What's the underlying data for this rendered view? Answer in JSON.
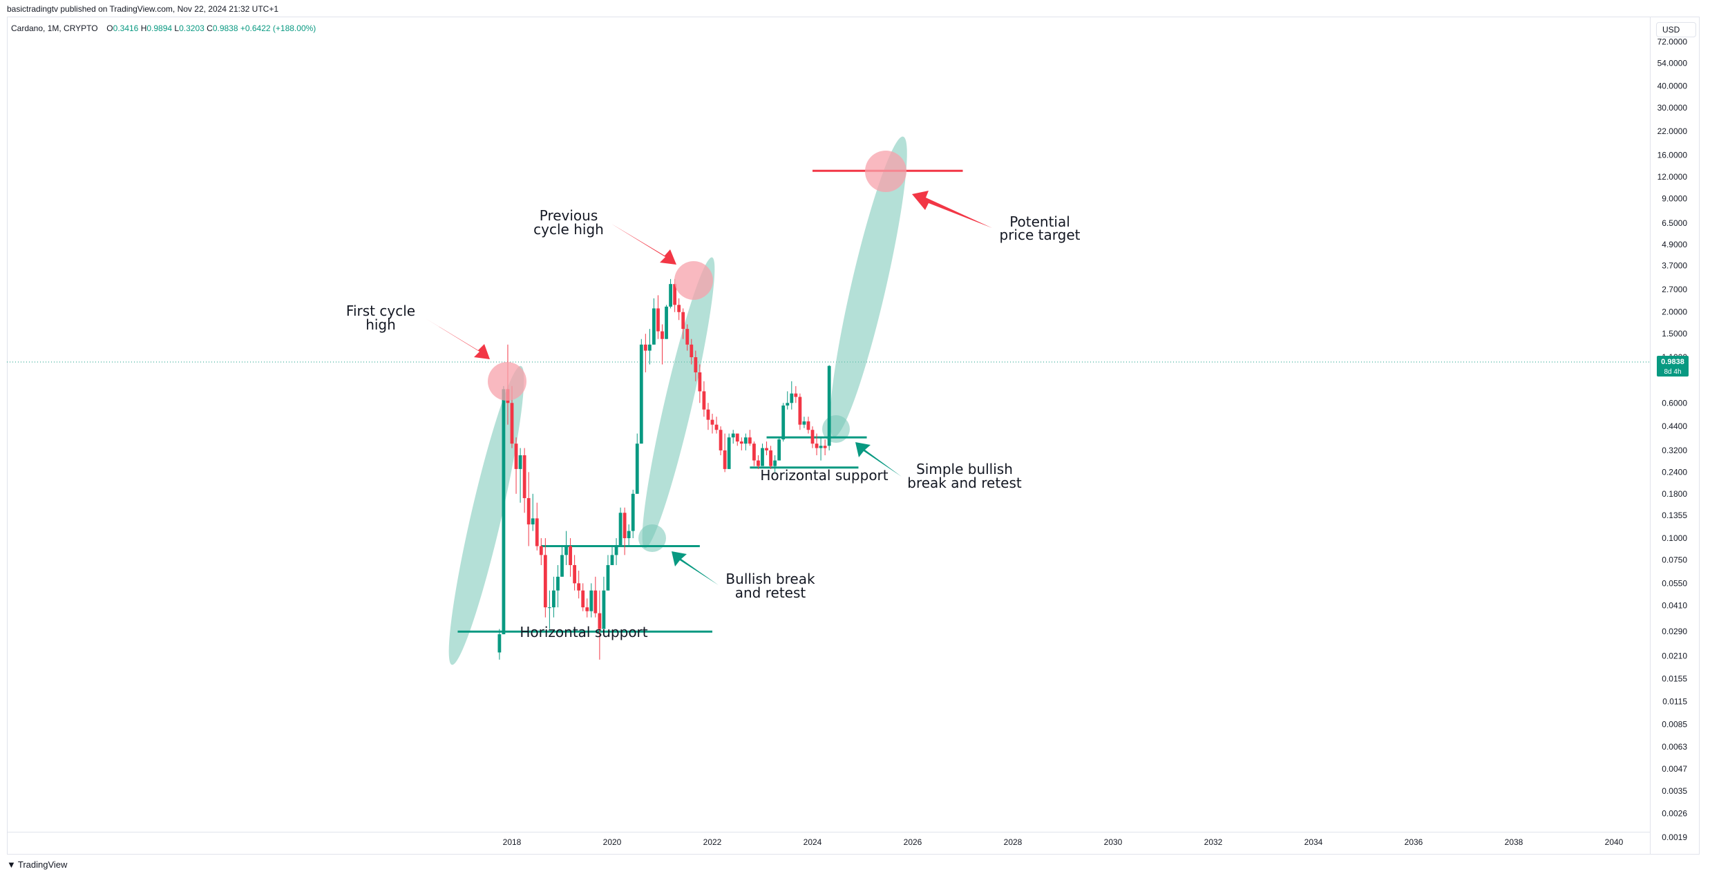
{
  "header": {
    "published": "basictradingtv published on TradingView.com, Nov 22, 2024 21:32 UTC+1",
    "symbol": "Cardano, 1M, CRYPTO",
    "ohlc": [
      {
        "label": "O",
        "value": "0.3416"
      },
      {
        "label": "H",
        "value": "0.9894"
      },
      {
        "label": "L",
        "value": "0.3203"
      },
      {
        "label": "C",
        "value": "0.9838"
      }
    ],
    "change": "+0.6422 (+188.00%)"
  },
  "price_axis": {
    "currency": "USD",
    "ticks": [
      "72.0000",
      "54.0000",
      "40.0000",
      "30.0000",
      "22.0000",
      "16.0000",
      "12.0000",
      "9.0000",
      "6.5000",
      "4.9000",
      "3.7000",
      "2.7000",
      "2.0000",
      "1.5000",
      "1.1000",
      "0.6000",
      "0.4400",
      "0.3200",
      "0.2400",
      "0.1800",
      "0.1355",
      "0.1000",
      "0.0750",
      "0.0550",
      "0.0410",
      "0.0290",
      "0.0210",
      "0.0155",
      "0.0115",
      "0.0085",
      "0.0063",
      "0.0047",
      "0.0035",
      "0.0026",
      "0.0019"
    ],
    "last_price": "0.9838",
    "countdown": "8d 4h"
  },
  "time_axis": {
    "ticks": [
      "2018",
      "2020",
      "2022",
      "2024",
      "2026",
      "2028",
      "2030",
      "2032",
      "2034",
      "2036",
      "2038",
      "2040"
    ]
  },
  "colors": {
    "up": "#089981",
    "down": "#f23645",
    "highlight_circle": "#f7a1ab",
    "channel": "#76c7b7",
    "target_line": "#f23645"
  },
  "annotations": {
    "first_cycle_high": [
      "First cycle",
      "high"
    ],
    "previous_cycle_high": [
      "Previous",
      "cycle high"
    ],
    "potential_price_target": [
      "Potential",
      "price target"
    ],
    "simple_bullish_break": [
      "Simple bullish",
      "break and retest"
    ],
    "bullish_break": [
      "Bullish break",
      "and retest"
    ],
    "horizontal_support_1": "Horizontal support",
    "horizontal_support_2": "Horizontal support"
  },
  "chart_data": {
    "type": "candlestick",
    "scale": "log",
    "candles_high_low_open_close": [
      [
        0.03,
        0.02,
        0.022,
        0.028
      ],
      [
        0.75,
        0.028,
        0.028,
        0.72
      ],
      [
        1.3,
        0.45,
        0.72,
        0.6
      ],
      [
        0.75,
        0.33,
        0.6,
        0.35
      ],
      [
        0.38,
        0.18,
        0.35,
        0.25
      ],
      [
        0.33,
        0.16,
        0.25,
        0.3
      ],
      [
        0.33,
        0.14,
        0.3,
        0.17
      ],
      [
        0.24,
        0.09,
        0.17,
        0.12
      ],
      [
        0.18,
        0.11,
        0.12,
        0.13
      ],
      [
        0.16,
        0.085,
        0.13,
        0.09
      ],
      [
        0.1,
        0.07,
        0.09,
        0.08
      ],
      [
        0.1,
        0.035,
        0.08,
        0.04
      ],
      [
        0.05,
        0.03,
        0.04,
        0.04
      ],
      [
        0.06,
        0.035,
        0.04,
        0.05
      ],
      [
        0.07,
        0.04,
        0.05,
        0.06
      ],
      [
        0.09,
        0.06,
        0.06,
        0.08
      ],
      [
        0.11,
        0.07,
        0.08,
        0.09
      ],
      [
        0.1,
        0.06,
        0.09,
        0.07
      ],
      [
        0.08,
        0.05,
        0.07,
        0.055
      ],
      [
        0.065,
        0.045,
        0.055,
        0.05
      ],
      [
        0.055,
        0.038,
        0.05,
        0.04
      ],
      [
        0.045,
        0.035,
        0.04,
        0.038
      ],
      [
        0.055,
        0.035,
        0.038,
        0.05
      ],
      [
        0.06,
        0.035,
        0.05,
        0.037
      ],
      [
        0.05,
        0.02,
        0.037,
        0.03
      ],
      [
        0.06,
        0.03,
        0.03,
        0.05
      ],
      [
        0.08,
        0.05,
        0.05,
        0.07
      ],
      [
        0.09,
        0.07,
        0.07,
        0.08
      ],
      [
        0.1,
        0.07,
        0.08,
        0.09
      ],
      [
        0.15,
        0.09,
        0.09,
        0.14
      ],
      [
        0.15,
        0.08,
        0.14,
        0.1
      ],
      [
        0.12,
        0.09,
        0.1,
        0.11
      ],
      [
        0.19,
        0.1,
        0.11,
        0.18
      ],
      [
        0.4,
        0.18,
        0.18,
        0.35
      ],
      [
        1.4,
        0.35,
        0.35,
        1.3
      ],
      [
        1.5,
        0.9,
        1.3,
        1.2
      ],
      [
        1.6,
        1.0,
        1.2,
        1.3
      ],
      [
        2.4,
        1.3,
        1.3,
        2.1
      ],
      [
        2.5,
        1.4,
        2.1,
        1.55
      ],
      [
        1.7,
        1.0,
        1.55,
        1.4
      ],
      [
        2.2,
        1.4,
        1.4,
        2.15
      ],
      [
        3.1,
        2.1,
        2.15,
        2.9
      ],
      [
        3.1,
        2.0,
        2.9,
        2.2
      ],
      [
        2.4,
        1.8,
        2.2,
        2.0
      ],
      [
        2.1,
        1.4,
        2.0,
        1.6
      ],
      [
        1.7,
        1.2,
        1.6,
        1.3
      ],
      [
        1.4,
        1.0,
        1.3,
        1.1
      ],
      [
        1.2,
        0.8,
        1.1,
        0.9
      ],
      [
        1.0,
        0.6,
        0.9,
        0.7
      ],
      [
        0.8,
        0.5,
        0.7,
        0.55
      ],
      [
        0.6,
        0.42,
        0.55,
        0.48
      ],
      [
        0.52,
        0.4,
        0.48,
        0.45
      ],
      [
        0.5,
        0.4,
        0.45,
        0.42
      ],
      [
        0.44,
        0.3,
        0.42,
        0.32
      ],
      [
        0.4,
        0.24,
        0.32,
        0.25
      ],
      [
        0.4,
        0.25,
        0.25,
        0.38
      ],
      [
        0.42,
        0.35,
        0.38,
        0.4
      ],
      [
        0.4,
        0.34,
        0.4,
        0.36
      ],
      [
        0.38,
        0.32,
        0.36,
        0.35
      ],
      [
        0.4,
        0.32,
        0.35,
        0.38
      ],
      [
        0.42,
        0.34,
        0.38,
        0.35
      ],
      [
        0.36,
        0.26,
        0.35,
        0.28
      ],
      [
        0.3,
        0.25,
        0.28,
        0.26
      ],
      [
        0.35,
        0.26,
        0.26,
        0.33
      ],
      [
        0.36,
        0.3,
        0.33,
        0.32
      ],
      [
        0.34,
        0.25,
        0.32,
        0.26
      ],
      [
        0.3,
        0.24,
        0.26,
        0.28
      ],
      [
        0.38,
        0.28,
        0.28,
        0.37
      ],
      [
        0.6,
        0.36,
        0.37,
        0.58
      ],
      [
        0.7,
        0.55,
        0.58,
        0.6
      ],
      [
        0.8,
        0.55,
        0.6,
        0.68
      ],
      [
        0.75,
        0.6,
        0.68,
        0.65
      ],
      [
        0.68,
        0.42,
        0.65,
        0.45
      ],
      [
        0.5,
        0.43,
        0.45,
        0.47
      ],
      [
        0.5,
        0.4,
        0.47,
        0.42
      ],
      [
        0.44,
        0.33,
        0.42,
        0.35
      ],
      [
        0.4,
        0.3,
        0.35,
        0.33
      ],
      [
        0.38,
        0.28,
        0.33,
        0.34
      ],
      [
        0.37,
        0.3,
        0.34,
        0.33
      ],
      [
        0.99,
        0.32,
        0.34,
        0.98
      ]
    ],
    "support_lines": [
      {
        "from": "2016-12",
        "to": "2022-01",
        "price": 0.029
      },
      {
        "from": "2018-08",
        "to": "2021-10",
        "price": 0.09
      },
      {
        "from": "2022-10",
        "to": "2024-12",
        "price": 0.255
      },
      {
        "from": "2023-02",
        "to": "2025-02",
        "price": 0.38
      }
    ],
    "target_line": {
      "from": "2024-01",
      "to": "2027-01",
      "price": 13.0
    }
  }
}
